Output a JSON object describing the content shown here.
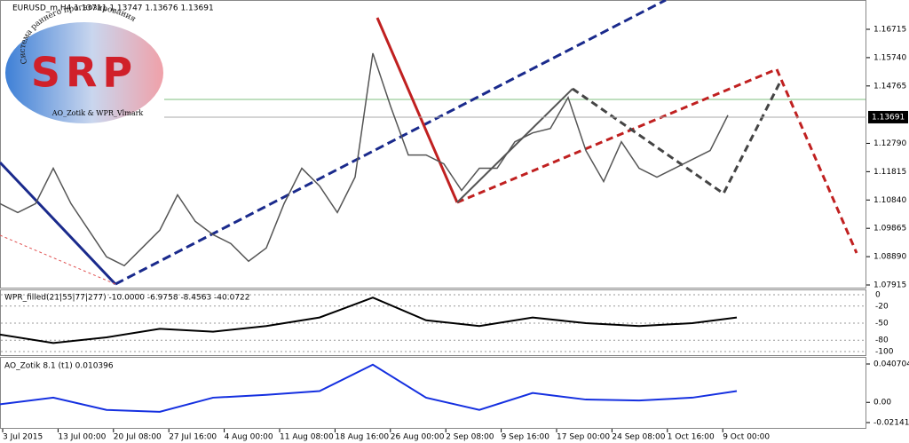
{
  "logo": {
    "title": "SRP",
    "arc_text": "Система раннего прогнозирования",
    "caption": "AO_Zotik & WPR_Vlmark"
  },
  "main_panel": {
    "header": "EURUSD_m,H4  1.13711 1.13747 1.13676 1.13691",
    "price_ticks": [
      {
        "value": 1.16715,
        "label": "1.16715"
      },
      {
        "value": 1.1574,
        "label": "1.15740"
      },
      {
        "value": 1.14765,
        "label": "1.14765"
      },
      {
        "value": 1.1279,
        "label": "1.12790"
      },
      {
        "value": 1.11815,
        "label": "1.11815"
      },
      {
        "value": 1.1084,
        "label": "1.10840"
      },
      {
        "value": 1.09865,
        "label": "1.09865"
      },
      {
        "value": 1.0889,
        "label": "1.08890"
      },
      {
        "value": 1.07915,
        "label": "1.07915"
      }
    ],
    "current_price": 1.13691,
    "close": [
      1.10713,
      1.10408,
      1.10713,
      1.11932,
      1.10713,
      1.09799,
      1.08885,
      1.0858,
      1.09189,
      1.09799,
      1.11017,
      1.10103,
      1.09646,
      1.09341,
      1.08732,
      1.09189,
      1.10713,
      1.11932,
      1.11322,
      1.10408,
      1.11627,
      1.15892,
      1.14064,
      1.12388,
      1.12388,
      1.12084,
      1.11169,
      1.11932,
      1.11932,
      1.12845,
      1.1315,
      1.13302,
      1.14369,
      1.12541,
      1.11474,
      1.12845,
      1.11932,
      1.11627,
      1.11932,
      1.12236,
      1.12541,
      1.13759
    ]
  },
  "wpr_panel": {
    "header": "WPR_filled(21|55|77|277) -10.0000 -6.9758 -8.4563 -40.0722",
    "yticks": [
      0,
      -20,
      -50,
      -80,
      -100
    ],
    "slow_line": [
      -70,
      -85,
      -75,
      -60,
      -65,
      -55,
      -40,
      -5,
      -45,
      -55,
      -40,
      -50,
      -55,
      -50,
      -40
    ]
  },
  "ao_panel": {
    "header": "AO_Zotik 8.1 (t1) 0.010396",
    "yticks": [
      0.040704,
      {
        "value": 0,
        "label": "0.00"
      },
      -0.021413
    ],
    "line": [
      -0.002,
      0.005,
      -0.008,
      -0.01,
      0.005,
      0.008,
      0.012,
      0.04,
      0.005,
      -0.008,
      0.01,
      0.003,
      0.002,
      0.005,
      0.012
    ]
  },
  "time_axis": {
    "labels": [
      "3 Jul 2015",
      "13 Jul 00:00",
      "20 Jul 08:00",
      "27 Jul 16:00",
      "4 Aug 00:00",
      "11 Aug 08:00",
      "18 Aug 16:00",
      "26 Aug 00:00",
      "2 Sep 08:00",
      "9 Sep 16:00",
      "17 Sep 00:00",
      "24 Sep 08:00",
      "1 Oct 16:00",
      "9 Oct 00:00"
    ]
  }
}
